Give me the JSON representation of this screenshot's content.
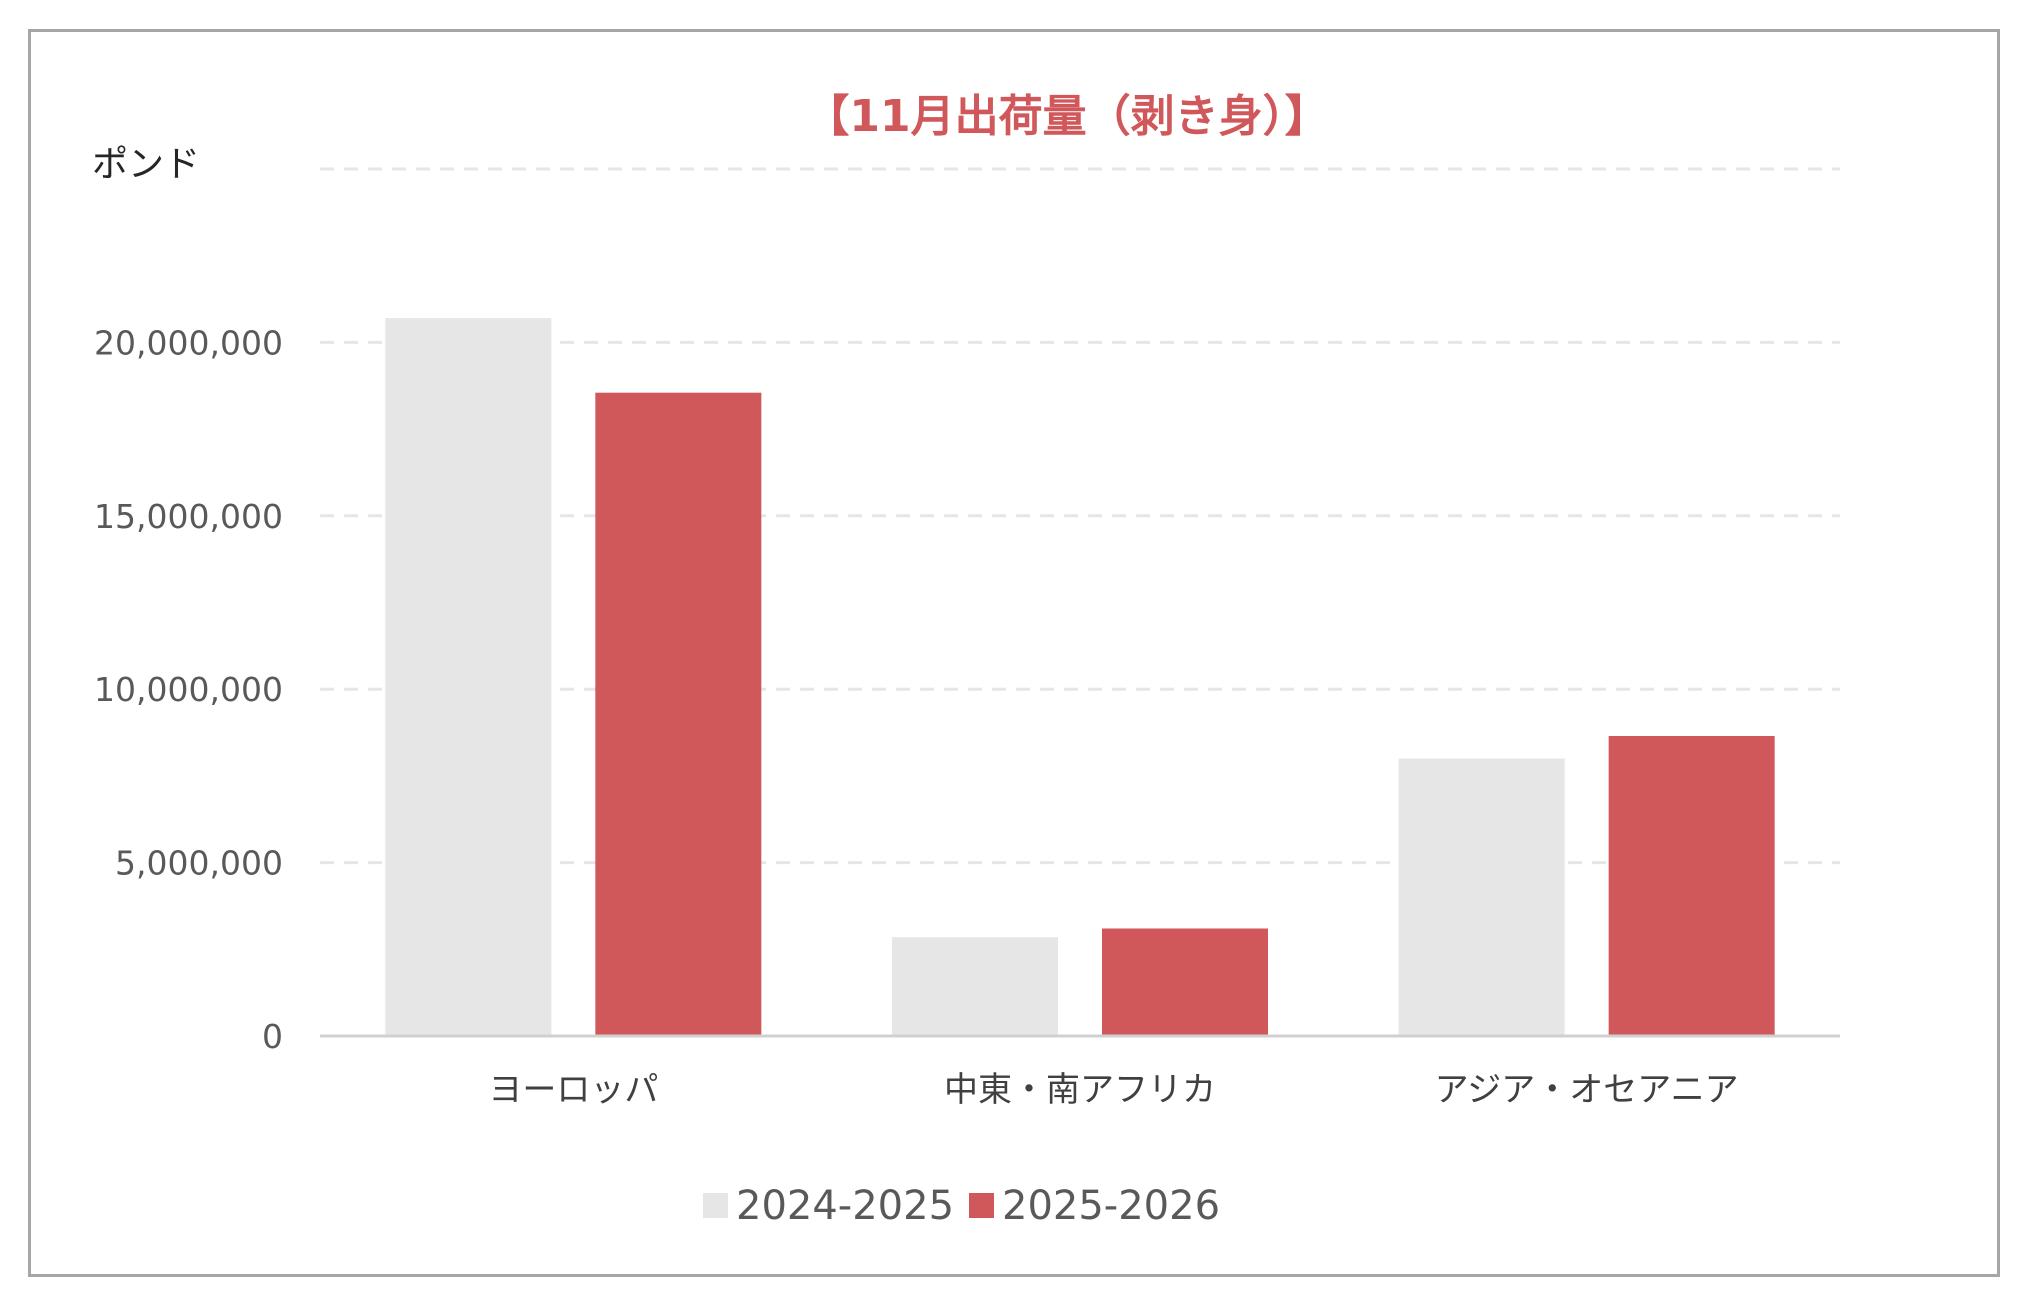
{
  "chart_data": {
    "type": "bar",
    "title": "【11月出荷量（剥き身）】",
    "ylabel": "ポンド",
    "xlabel": "",
    "categories": [
      "ヨーロッパ",
      "中東・南アフリカ",
      "アジア・オセアニア"
    ],
    "series": [
      {
        "name": "2024-2025",
        "color": "#e6e6e6",
        "values": [
          20700000,
          2850000,
          8000000
        ]
      },
      {
        "name": "2025-2026",
        "color": "#d0575a",
        "values": [
          18550000,
          3100000,
          8650000
        ]
      }
    ],
    "ylim": [
      0,
      25000000
    ],
    "yticks": [
      0,
      5000000,
      10000000,
      15000000,
      20000000
    ],
    "ytick_labels": [
      "0",
      "5,000,000",
      "10,000,000",
      "15,000,000",
      "20,000,000"
    ],
    "grid": true,
    "legend_position": "bottom",
    "title_color": "#d0575a"
  }
}
